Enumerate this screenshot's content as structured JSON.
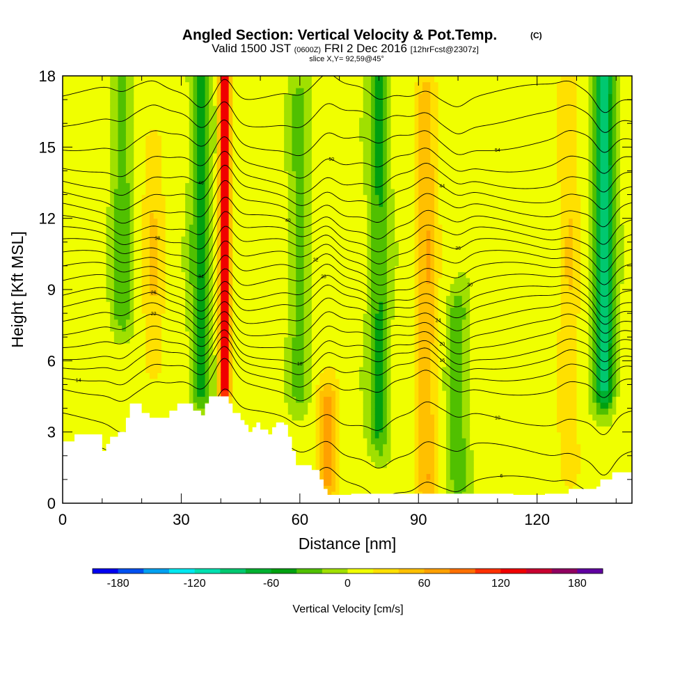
{
  "header": {
    "title": "Angled Section: Vertical Velocity & Pot.Temp.",
    "title_unit": "(C)",
    "valid_prefix": "Valid 1500 JST",
    "valid_utc": "(0600Z)",
    "valid_date": "FRI 2 Dec 2016",
    "forecast": "[12hrFcst@2307z]",
    "slice": "slice X,Y= 92,59@45°"
  },
  "chart_data": {
    "type": "heatmap",
    "xlabel": "Distance [nm]",
    "ylabel": "Height [Kft MSL]",
    "xlim": [
      0,
      144
    ],
    "ylim": [
      0,
      18
    ],
    "xticks": [
      0,
      30,
      60,
      90,
      120
    ],
    "yticks": [
      0,
      3,
      6,
      9,
      12,
      15,
      18
    ],
    "grid": false,
    "field": "Vertical Velocity",
    "colorbar": {
      "label": "Vertical Velocity [cm/s]",
      "ticks": [
        -180,
        -120,
        -60,
        0,
        60,
        120,
        180
      ],
      "bounds": [
        -200,
        200
      ],
      "colors": [
        "#0000f0",
        "#0050f0",
        "#00a0f0",
        "#00e8f0",
        "#00e0b0",
        "#00c870",
        "#00b030",
        "#00a010",
        "#50c000",
        "#a0e000",
        "#f0ff00",
        "#ffe000",
        "#ffc000",
        "#ffa000",
        "#ff7000",
        "#ff3000",
        "#f00000",
        "#c80030",
        "#900060",
        "#6000a0"
      ]
    },
    "velocity_features": [
      {
        "x": 41,
        "y_range": [
          5,
          18
        ],
        "value": 140,
        "kind": "updraft"
      },
      {
        "x": 92,
        "y_range": [
          1,
          17
        ],
        "value": 50,
        "kind": "updraft"
      },
      {
        "x": 67,
        "y_range": [
          1,
          4
        ],
        "value": 60,
        "kind": "updraft"
      },
      {
        "x": 128,
        "y_range": [
          2,
          18
        ],
        "value": 30,
        "kind": "updraft"
      },
      {
        "x": 23,
        "y_range": [
          6,
          15
        ],
        "value": 30,
        "kind": "updraft"
      },
      {
        "x": 35,
        "y_range": [
          5,
          18
        ],
        "value": -60,
        "kind": "downdraft"
      },
      {
        "x": 80,
        "y_range": [
          3,
          18
        ],
        "value": -50,
        "kind": "downdraft"
      },
      {
        "x": 137,
        "y_range": [
          5,
          18
        ],
        "value": -100,
        "kind": "downdraft"
      },
      {
        "x": 15,
        "y_range": [
          8,
          18
        ],
        "value": -40,
        "kind": "downdraft"
      },
      {
        "x": 60,
        "y_range": [
          5,
          17
        ],
        "value": -35,
        "kind": "downdraft"
      },
      {
        "x": 100,
        "y_range": [
          1,
          8
        ],
        "value": -40,
        "kind": "downdraft"
      }
    ],
    "isentropes": [
      {
        "base_height": 0.8,
        "label": "6",
        "label_x": 111
      },
      {
        "base_height": 2.2,
        "label": "",
        "label_x": 0
      },
      {
        "base_height": 3.6,
        "label": "10",
        "label_x": 110
      },
      {
        "base_height": 4.9,
        "label": "",
        "label_x": 0
      },
      {
        "base_height": 5.5,
        "label": "14",
        "label_x": 4
      },
      {
        "base_height": 6.0,
        "label": "16",
        "label_x": 96
      },
      {
        "base_height": 6.4,
        "label": "18",
        "label_x": 60
      },
      {
        "base_height": 6.9,
        "label": "20",
        "label_x": 96
      },
      {
        "base_height": 7.4,
        "label": "22",
        "label_x": 23
      },
      {
        "base_height": 7.9,
        "label": "24",
        "label_x": 95
      },
      {
        "base_height": 8.4,
        "label": "26",
        "label_x": 23
      },
      {
        "base_height": 8.8,
        "label": "28",
        "label_x": 66
      },
      {
        "base_height": 9.3,
        "label": "30",
        "label_x": 103
      },
      {
        "base_height": 9.8,
        "label": "32",
        "label_x": 64
      },
      {
        "base_height": 10.3,
        "label": "34",
        "label_x": 35
      },
      {
        "base_height": 10.8,
        "label": "36",
        "label_x": 100
      },
      {
        "base_height": 11.3,
        "label": "38",
        "label_x": 24
      },
      {
        "base_height": 11.8,
        "label": "40",
        "label_x": 57
      },
      {
        "base_height": 12.4,
        "label": "",
        "label_x": 0
      },
      {
        "base_height": 13.0,
        "label": "44",
        "label_x": 96
      },
      {
        "base_height": 13.6,
        "label": "46",
        "label_x": 35
      },
      {
        "base_height": 14.3,
        "label": "50",
        "label_x": 68
      },
      {
        "base_height": 15.2,
        "label": "54",
        "label_x": 110
      },
      {
        "base_height": 16.2,
        "label": "",
        "label_x": 0
      },
      {
        "base_height": 17.3,
        "label": "",
        "label_x": 0
      }
    ],
    "terrain": [
      [
        0,
        2.6
      ],
      [
        3,
        2.9
      ],
      [
        9,
        2.9
      ],
      [
        10,
        2.2
      ],
      [
        11,
        2.5
      ],
      [
        12,
        2.8
      ],
      [
        14,
        3.0
      ],
      [
        16,
        3.6
      ],
      [
        17,
        4.2
      ],
      [
        19,
        4.2
      ],
      [
        20,
        3.8
      ],
      [
        22,
        3.6
      ],
      [
        26,
        3.6
      ],
      [
        27,
        3.9
      ],
      [
        29,
        4.2
      ],
      [
        32,
        4.2
      ],
      [
        33,
        3.9
      ],
      [
        35,
        3.7
      ],
      [
        36,
        4.2
      ],
      [
        37,
        4.5
      ],
      [
        41,
        4.5
      ],
      [
        42,
        4.2
      ],
      [
        43,
        3.8
      ],
      [
        45,
        3.5
      ],
      [
        46,
        3.3
      ],
      [
        47,
        3.0
      ],
      [
        48,
        3.2
      ],
      [
        49,
        3.4
      ],
      [
        50,
        3.1
      ],
      [
        52,
        2.9
      ],
      [
        53,
        3.2
      ],
      [
        54,
        3.4
      ],
      [
        56,
        3.3
      ],
      [
        57,
        2.8
      ],
      [
        58,
        2.2
      ],
      [
        59,
        1.6
      ],
      [
        60,
        1.6
      ],
      [
        63,
        1.4
      ],
      [
        65,
        1.0
      ],
      [
        66,
        0.6
      ],
      [
        67,
        0.35
      ],
      [
        72,
        0.35
      ],
      [
        73,
        0.4
      ],
      [
        114,
        0.35
      ],
      [
        121,
        0.35
      ],
      [
        122,
        0.4
      ],
      [
        128,
        0.6
      ],
      [
        135,
        0.7
      ],
      [
        136,
        1.0
      ],
      [
        139,
        1.3
      ],
      [
        144,
        1.3
      ]
    ]
  }
}
